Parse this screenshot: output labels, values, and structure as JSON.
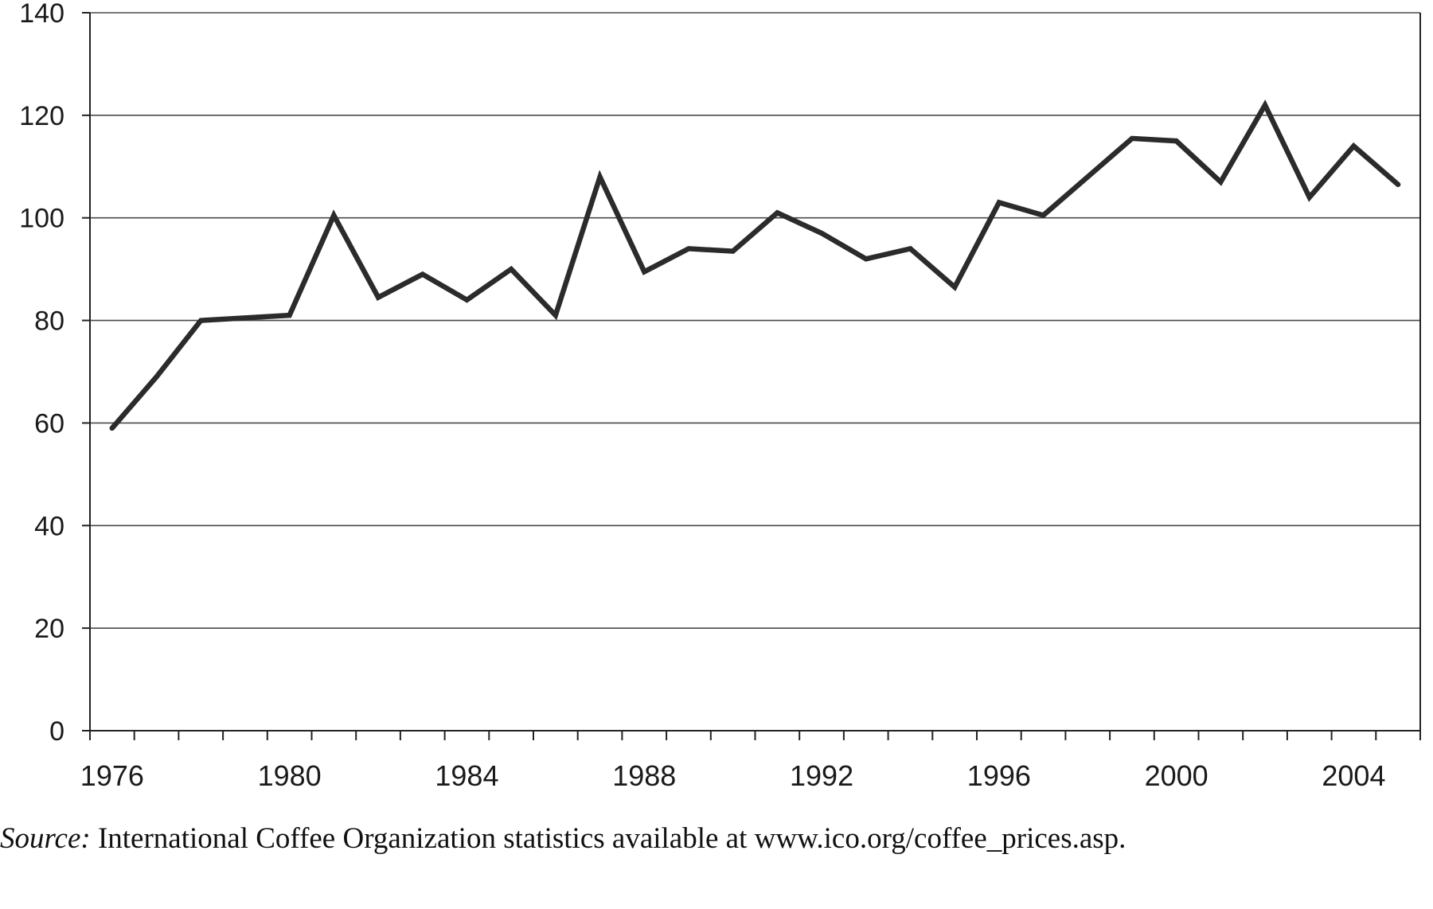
{
  "chart_data": {
    "type": "line",
    "x": [
      1976,
      1977,
      1978,
      1979,
      1980,
      1981,
      1982,
      1983,
      1984,
      1985,
      1986,
      1987,
      1988,
      1989,
      1990,
      1991,
      1992,
      1993,
      1994,
      1995,
      1996,
      1997,
      1998,
      1999,
      2000,
      2001,
      2002,
      2003,
      2004,
      2005
    ],
    "series": [
      {
        "values": [
          59,
          69,
          80,
          80.5,
          81,
          100.5,
          84.5,
          89,
          84,
          90,
          81,
          108,
          89.5,
          94,
          93.5,
          101,
          97,
          92,
          94,
          86.5,
          103,
          100.5,
          108,
          115.5,
          115,
          107,
          122,
          104,
          114,
          106.5
        ]
      }
    ],
    "ylim": [
      0,
      140
    ],
    "yticks": [
      0,
      20,
      40,
      60,
      80,
      100,
      120,
      140
    ],
    "xtick_labels": [
      "1976",
      "1980",
      "1984",
      "1988",
      "1992",
      "1996",
      "2000",
      "2004"
    ],
    "grid": "horizontal",
    "title": "",
    "xlabel": "",
    "ylabel": "",
    "line_color": "#2b2b2b"
  },
  "source": {
    "label": "Source:",
    "text": "International Coffee Organization statistics available at www.ico.org/coffee_prices.asp."
  }
}
